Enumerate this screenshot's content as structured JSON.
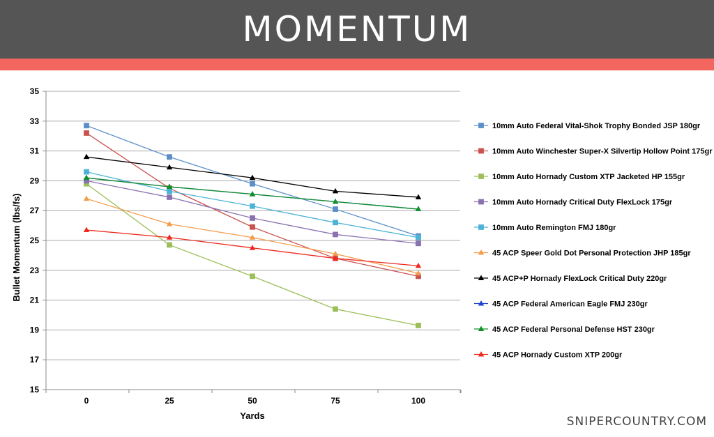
{
  "header": {
    "title": "MOMENTUM"
  },
  "accent_color": "#f2665f",
  "header_color": "#555555",
  "footer": {
    "site": "SNIPERCOUNTRY.COM"
  },
  "chart_data": {
    "type": "line",
    "title": "",
    "xlabel": "Yards",
    "ylabel": "Bullet Momentum (lbs/fs)",
    "x": [
      0,
      25,
      50,
      75,
      100
    ],
    "xticks": [
      "0",
      "25",
      "50",
      "75",
      "100"
    ],
    "ylim": [
      15,
      35
    ],
    "yticks": [
      15,
      17,
      19,
      21,
      23,
      25,
      27,
      29,
      31,
      33,
      35
    ],
    "grid": true,
    "legend_position": "right",
    "series": [
      {
        "name": "10mm Auto Federal Vital-Shok Trophy Bonded JSP 180gr",
        "color": "#5b8fc9",
        "marker": "square",
        "values": [
          32.7,
          30.6,
          28.8,
          27.1,
          25.3
        ]
      },
      {
        "name": "10mm Auto Winchester Super-X Silvertip Hollow Point 175gr",
        "color": "#c9514e",
        "marker": "square",
        "values": [
          32.2,
          28.5,
          25.9,
          23.8,
          22.6
        ]
      },
      {
        "name": "10mm Auto Hornady Custom XTP Jacketed HP 155gr",
        "color": "#9cbf5a",
        "marker": "square",
        "values": [
          28.8,
          24.7,
          22.6,
          20.4,
          19.3
        ]
      },
      {
        "name": "10mm Auto Hornady Critical Duty FlexLock 175gr",
        "color": "#8a72b0",
        "marker": "square",
        "values": [
          29.0,
          27.9,
          26.5,
          25.4,
          24.8
        ]
      },
      {
        "name": "10mm Auto Remington FMJ 180gr",
        "color": "#4db3d6",
        "marker": "square",
        "values": [
          29.6,
          28.3,
          27.3,
          26.2,
          25.2
        ]
      },
      {
        "name": "45 ACP Speer Gold Dot Personal Protection JHP 185gr",
        "color": "#f39c4a",
        "marker": "triangle",
        "values": [
          27.8,
          26.1,
          25.2,
          24.1,
          22.8
        ]
      },
      {
        "name": "45 ACP+P Hornady FlexLock Critical Duty 220gr",
        "color": "#000000",
        "marker": "triangle",
        "values": [
          30.6,
          29.9,
          29.2,
          28.3,
          27.9
        ]
      },
      {
        "name": "45 ACP Federal American Eagle FMJ 230gr",
        "color": "#1f3fd1",
        "marker": "triangle",
        "values": [
          29.2,
          28.6,
          28.1,
          27.6,
          27.1
        ]
      },
      {
        "name": "45 ACP Federal Personal Defense HST 230gr",
        "color": "#10922a",
        "marker": "triangle",
        "values": [
          29.2,
          28.6,
          28.1,
          27.6,
          27.1
        ]
      },
      {
        "name": "45 ACP Hornady Custom XTP 200gr",
        "color": "#ee2a1e",
        "marker": "triangle",
        "values": [
          25.7,
          25.2,
          24.5,
          23.8,
          23.3
        ]
      }
    ]
  }
}
